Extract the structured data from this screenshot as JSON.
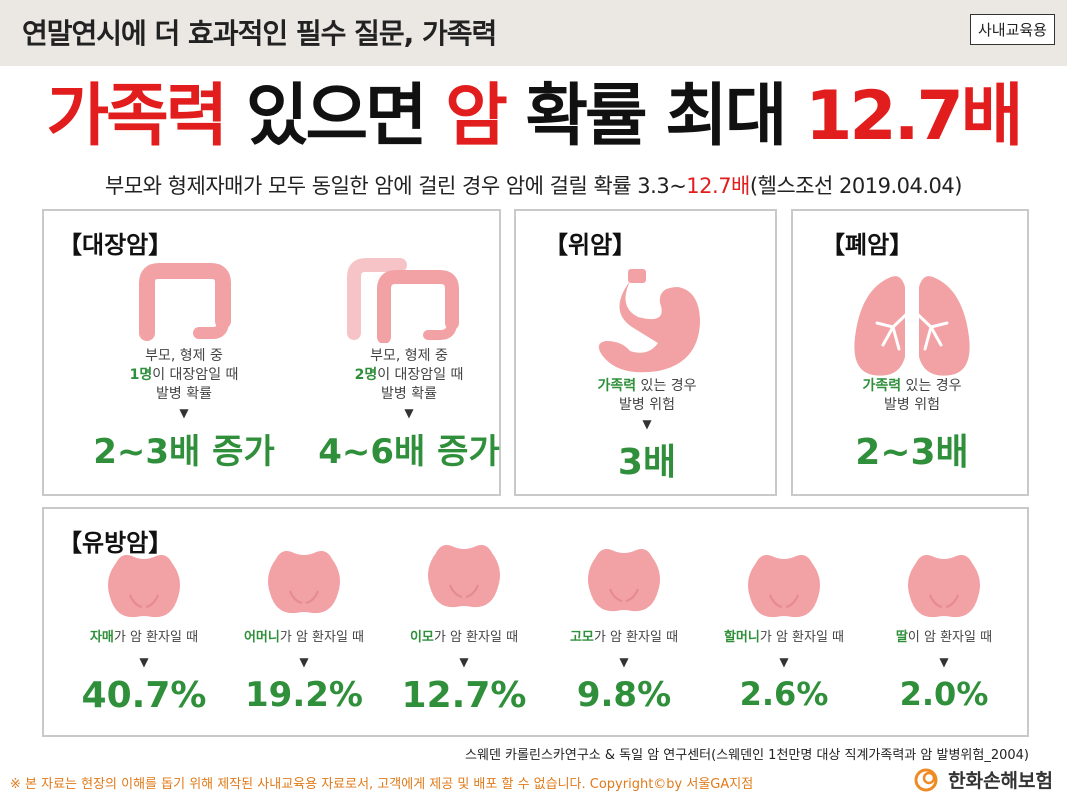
{
  "header": {
    "title": "연말연시에 더 효과적인 필수 질문, 가족력",
    "badge": "사내교육용"
  },
  "headline": {
    "part1": "가족력",
    "part2": " 있으면 ",
    "part3": "암",
    "part4": " 확률 최대 ",
    "part5": "12.7배"
  },
  "subline": {
    "before": "부모와 형제자매가 모두 동일한 암에 걸린 경우 암에 걸릴 확률 3.3~",
    "highlight": "12.7배",
    "after": "(헬스조선 2019.04.04)"
  },
  "colon": {
    "label": "【대장암】",
    "item1": {
      "line1": "부모, 형제 중",
      "highlight": "1명",
      "line2_rest": "이 대장암일 때",
      "line3": "발병 확률",
      "arrow": "▼",
      "value": "2~3배 증가"
    },
    "item2": {
      "line1": "부모, 형제 중",
      "highlight": "2명",
      "line2_rest": "이 대장암일 때",
      "line3": "발병 확률",
      "arrow": "▼",
      "value": "4~6배 증가"
    }
  },
  "stomach": {
    "label": "【위암】",
    "highlight": "가족력",
    "line1_rest": " 있는 경우",
    "line2": "발병 위험",
    "arrow": "▼",
    "value": "3배"
  },
  "lung": {
    "label": "【폐암】",
    "highlight": "가족력",
    "line1_rest": " 있는 경우",
    "line2": "발병 위험",
    "arrow": "▼",
    "value": "2~3배"
  },
  "breast": {
    "label": "【유방암】",
    "items": [
      {
        "who": "자매",
        "rest": "가 암 환자일 때",
        "arrow": "▼",
        "value": "40.7%"
      },
      {
        "who": "어머니",
        "rest": "가 암 환자일 때",
        "arrow": "▼",
        "value": "19.2%"
      },
      {
        "who": "이모",
        "rest": "가 암 환자일 때",
        "arrow": "▼",
        "value": "12.7%"
      },
      {
        "who": "고모",
        "rest": "가 암 환자일 때",
        "arrow": "▼",
        "value": "9.8%"
      },
      {
        "who": "할머니",
        "rest": "가 암 환자일 때",
        "arrow": "▼",
        "value": "2.6%"
      },
      {
        "who": "딸",
        "rest": "이 암 환자일 때",
        "arrow": "▼",
        "value": "2.0%"
      }
    ]
  },
  "footer": {
    "source": "스웨덴 카롤린스카연구소 & 독일 암 연구센터(스웨덴인 1천만명 대상 직계가족력과 암 발병위험_2004)",
    "note": "※ 본 자료는 현장의 이해를 돕기 위해 제작된 사내교육용 자료로서, 고객에게 제공 및 배포 할 수 없습니다. Copyright©by 서울GA지점",
    "brand": "한화손해보험"
  },
  "colors": {
    "accent_red": "#e21d1d",
    "accent_green": "#2f8f3a",
    "organ_pink": "#f2a1a4",
    "footer_orange": "#e07a1a"
  },
  "icons": {
    "colon": "colon-icon",
    "stomach": "stomach-icon",
    "lung": "lungs-icon",
    "breast": "breast-icon",
    "brand": "hanwha-logo-icon"
  }
}
